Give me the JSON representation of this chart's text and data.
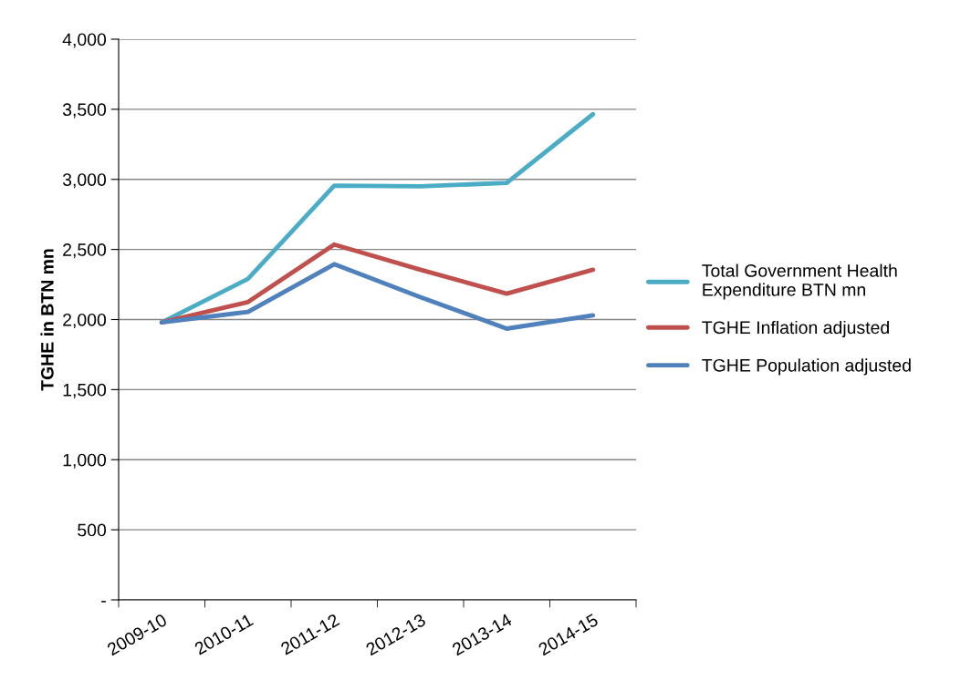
{
  "chart_data": {
    "type": "line",
    "ylabel": "TGHE in BTN mn",
    "categories": [
      "2009-10",
      "2010-11",
      "2011-12",
      "2012-13",
      "2013-14",
      "2014-15"
    ],
    "series": [
      {
        "name": "Total Government Health Expenditure BTN mn",
        "color": "#4bacc6",
        "values": [
          1980,
          2290,
          2955,
          2950,
          2975,
          3465
        ]
      },
      {
        "name": "TGHE Inflation adjusted",
        "color": "#c0504d",
        "values": [
          1980,
          2125,
          2535,
          2355,
          2185,
          2355
        ]
      },
      {
        "name": "TGHE Population adjusted",
        "color": "#4f81bd",
        "values": [
          1980,
          2055,
          2395,
          2160,
          1935,
          2030
        ]
      }
    ],
    "ylim": [
      0,
      4000
    ],
    "yticks": [
      {
        "value": 0,
        "label": "-"
      },
      {
        "value": 500,
        "label": "500"
      },
      {
        "value": 1000,
        "label": "1,000"
      },
      {
        "value": 1500,
        "label": "1,500"
      },
      {
        "value": 2000,
        "label": "2,000"
      },
      {
        "value": 2500,
        "label": "2,500"
      },
      {
        "value": 3000,
        "label": "3,000"
      },
      {
        "value": 3500,
        "label": "3,500"
      },
      {
        "value": 4000,
        "label": "4,000"
      }
    ],
    "grid": "y",
    "legend": "right",
    "marker": "none",
    "line_style": "solid"
  }
}
